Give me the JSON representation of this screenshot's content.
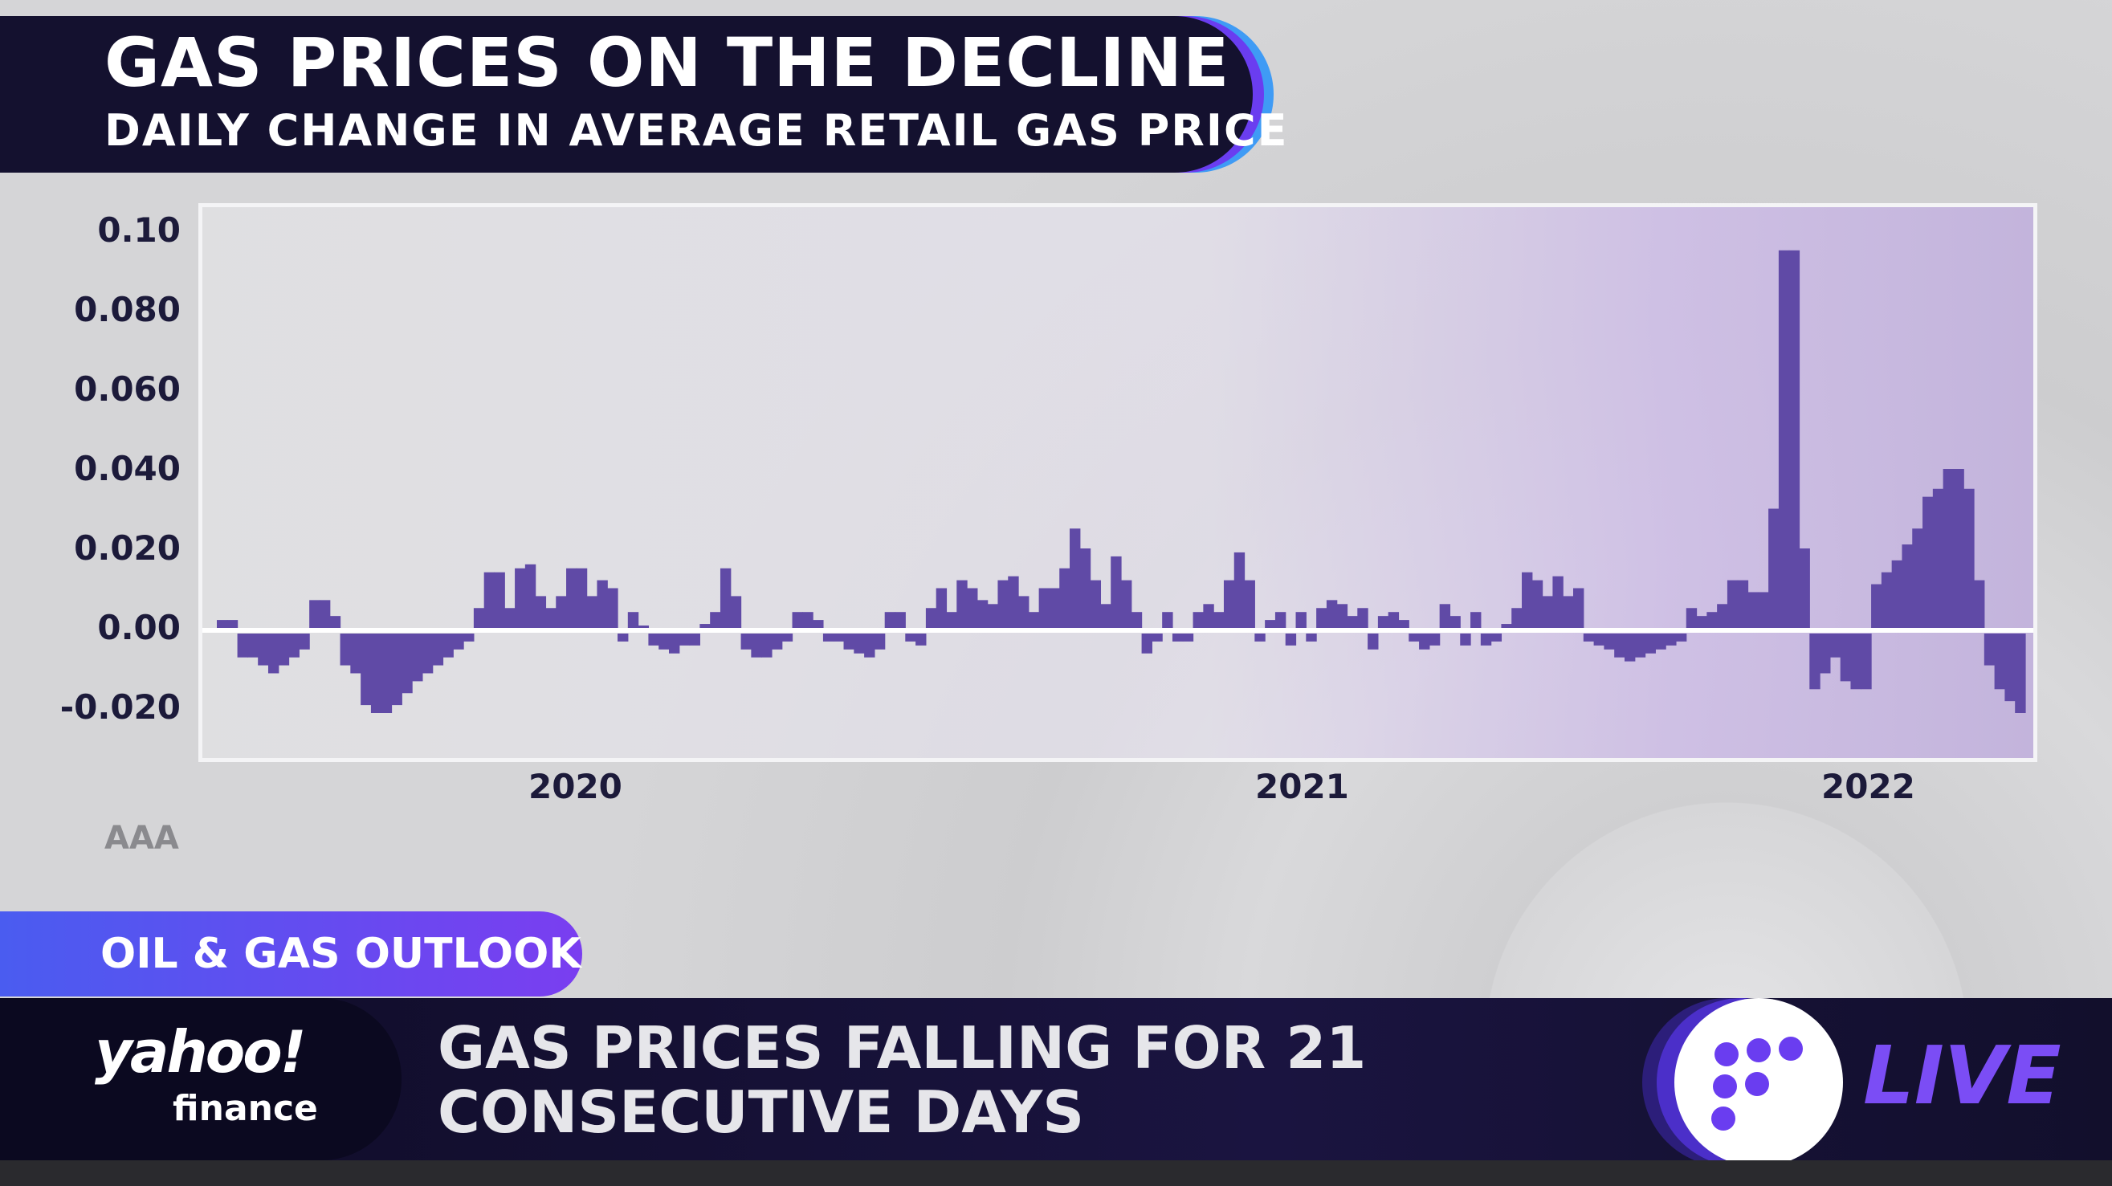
{
  "header": {
    "title": "GAS PRICES ON THE DECLINE",
    "subtitle": "DAILY CHANGE IN AVERAGE RETAIL GAS PRICE"
  },
  "source": "AAA",
  "segment_label": "OIL & GAS OUTLOOK",
  "ticker": {
    "brand": "yahoo!",
    "brand_sub": "finance",
    "headline_line1": "GAS PRICES FALLING FOR 21",
    "headline_line2": "CONSECUTIVE DAYS",
    "live": "LIVE"
  },
  "colors": {
    "bar": "#604aa6",
    "header_bg": "#14112f",
    "accent": "#6a3df0"
  },
  "chart_data": {
    "type": "bar",
    "title": "GAS PRICES ON THE DECLINE",
    "subtitle": "DAILY CHANGE IN AVERAGE RETAIL GAS PRICE",
    "ylim": [
      -0.03,
      0.105
    ],
    "y_ticks": [
      "0.10",
      "0.080",
      "0.060",
      "0.040",
      "0.020",
      "0.00",
      "-0.020"
    ],
    "x_ticks": [
      "2020",
      "2021",
      "2022"
    ],
    "grid": false,
    "zero_line": true,
    "values": [
      0.002,
      0.002,
      -0.006,
      -0.006,
      -0.008,
      -0.01,
      -0.008,
      -0.006,
      -0.004,
      0.007,
      0.007,
      0.003,
      -0.008,
      -0.01,
      -0.018,
      -0.02,
      -0.02,
      -0.018,
      -0.015,
      -0.012,
      -0.01,
      -0.008,
      -0.006,
      -0.004,
      -0.002,
      0.005,
      0.014,
      0.014,
      0.005,
      0.015,
      0.016,
      0.008,
      0.005,
      0.008,
      0.015,
      0.015,
      0.008,
      0.012,
      0.01,
      -0.002,
      0.004,
      0,
      -0.003,
      -0.004,
      -0.005,
      -0.003,
      -0.003,
      0.001,
      0.004,
      0.015,
      0.008,
      -0.004,
      -0.006,
      -0.006,
      -0.004,
      -0.002,
      0.004,
      0.004,
      0.002,
      -0.002,
      -0.002,
      -0.004,
      -0.005,
      -0.006,
      -0.004,
      0.004,
      0.004,
      -0.002,
      -0.003,
      0.005,
      0.01,
      0.004,
      0.012,
      0.01,
      0.007,
      0.006,
      0.012,
      0.013,
      0.008,
      0.004,
      0.01,
      0.01,
      0.015,
      0.025,
      0.02,
      0.012,
      0.006,
      0.018,
      0.012,
      0.004,
      -0.005,
      -0.002,
      0.004,
      -0.002,
      -0.002,
      0.004,
      0.006,
      0.004,
      0.012,
      0.019,
      0.012,
      -0.002,
      0.002,
      0.004,
      -0.003,
      0.004,
      -0.002,
      0.005,
      0.007,
      0.006,
      0.003,
      0.005,
      -0.004,
      0.003,
      0.004,
      0.002,
      -0.002,
      -0.004,
      -0.003,
      0.006,
      0.003,
      -0.003,
      0.004,
      -0.003,
      -0.002,
      0.001,
      0.005,
      0.014,
      0.012,
      0.008,
      0.013,
      0.008,
      0.01,
      -0.002,
      -0.003,
      -0.004,
      -0.006,
      -0.007,
      -0.006,
      -0.005,
      -0.004,
      -0.003,
      -0.002,
      0.005,
      0.003,
      0.004,
      0.006,
      0.012,
      0.012,
      0.009,
      0.009,
      0.03,
      0.095,
      0.095,
      0.02,
      -0.014,
      -0.01,
      -0.006,
      -0.012,
      -0.014,
      -0.014,
      0.011,
      0.014,
      0.017,
      0.021,
      0.025,
      0.033,
      0.035,
      0.04,
      0.04,
      0.035,
      0.012,
      -0.008,
      -0.014,
      -0.017,
      -0.02
    ]
  }
}
